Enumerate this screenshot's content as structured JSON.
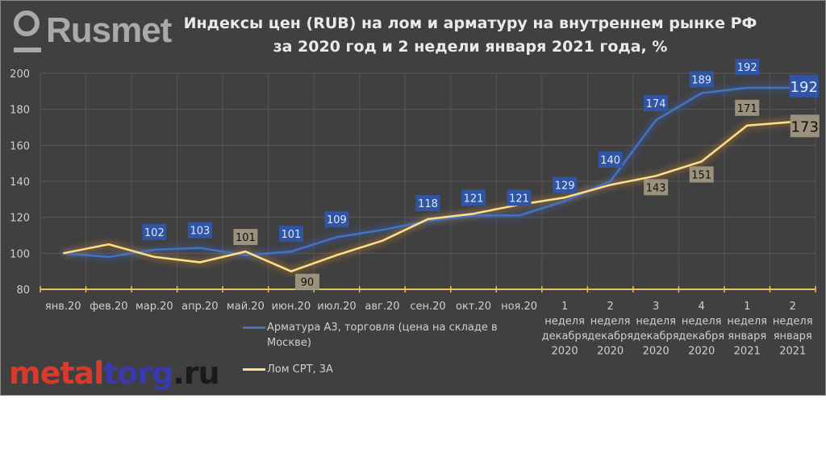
{
  "logo": {
    "text": "Rusmet"
  },
  "watermark": {
    "part1": "metal",
    "part2": "torg",
    "part3": ".ru"
  },
  "chart_data": {
    "type": "line",
    "title": "Индексы цен (RUB) на лом и арматуру на внутреннем рынке РФ",
    "subtitle": "за 2020 год и 2 недели января 2021 года, %",
    "categories": [
      "янв.20",
      "фев.20",
      "мар.20",
      "апр.20",
      "май.20",
      "июн.20",
      "июл.20",
      "авг.20",
      "сен.20",
      "окт.20",
      "ноя.20",
      "1 неделя декабря 2020",
      "2 неделя декабря 2020",
      "3 неделя декабря 2020",
      "4 неделя декабря 2020",
      "1 неделя января 2021",
      "2 неделя января 2021"
    ],
    "category_lines": [
      [
        "янв.20"
      ],
      [
        "фев.20"
      ],
      [
        "мар.20"
      ],
      [
        "апр.20"
      ],
      [
        "май.20"
      ],
      [
        "июн.20"
      ],
      [
        "июл.20"
      ],
      [
        "авг.20"
      ],
      [
        "сен.20"
      ],
      [
        "окт.20"
      ],
      [
        "ноя.20"
      ],
      [
        "1",
        "неделя",
        "декабря",
        "2020"
      ],
      [
        "2",
        "неделя",
        "декабря",
        "2020"
      ],
      [
        "3",
        "неделя",
        "декабря",
        "2020"
      ],
      [
        "4",
        "неделя",
        "декабря",
        "2020"
      ],
      [
        "1",
        "неделя",
        "января",
        "2021"
      ],
      [
        "2",
        "неделя",
        "января",
        "2021"
      ]
    ],
    "ylim": [
      80,
      200
    ],
    "yticks": [
      80,
      100,
      120,
      140,
      160,
      180,
      200
    ],
    "grid": true,
    "legend_position": "bottom",
    "series": [
      {
        "name": "Арматура А3, торговля  (цена на складе в Москве)",
        "color": "#4472c4",
        "label_bg": "#2f55a4",
        "label_fg": "#dfe6f5",
        "values": [
          100,
          98,
          102,
          103,
          99,
          101,
          109,
          113,
          118,
          121,
          121,
          129,
          140,
          174,
          189,
          192,
          192
        ],
        "labeled": [
          2,
          3,
          5,
          6,
          8,
          9,
          10,
          11,
          12,
          13,
          14,
          15,
          16
        ]
      },
      {
        "name": "Лом СРТ, 3А",
        "color": "#ffe08a",
        "label_bg": "#9b917d",
        "label_fg": "#111111",
        "values": [
          100,
          105,
          98,
          95,
          101,
          90,
          99,
          107,
          119,
          122,
          127,
          131,
          138,
          143,
          151,
          171,
          173
        ],
        "labeled": [
          4,
          5,
          13,
          14,
          15,
          16
        ]
      }
    ]
  }
}
